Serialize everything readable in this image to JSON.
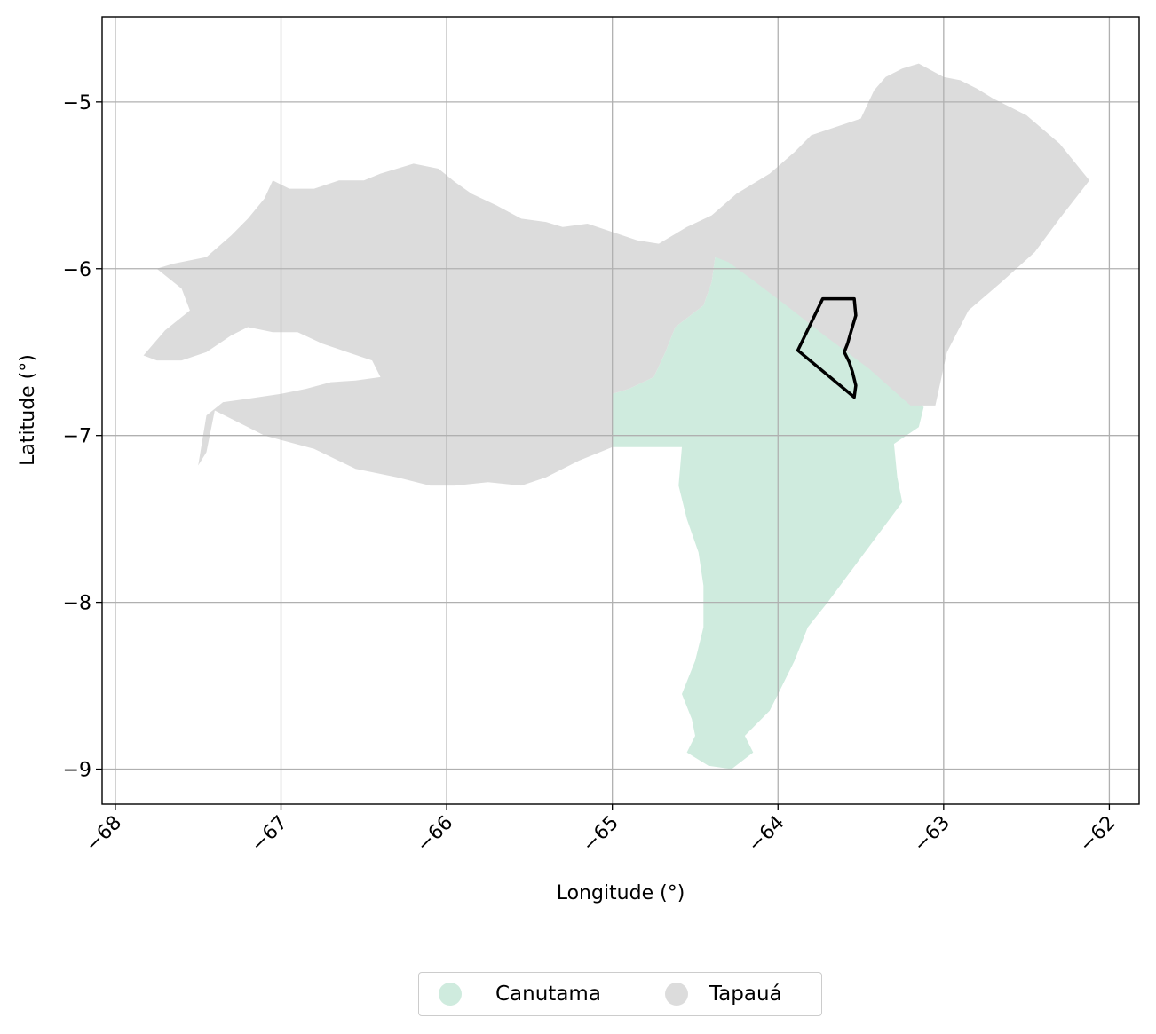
{
  "colors": {
    "canutama": "#cfebde",
    "tapaua": "#dcdcdc",
    "highlight_outline": "#000000",
    "grid": "#b0b0b0"
  },
  "chart_data": {
    "type": "map",
    "xlabel": "Longitude (°)",
    "ylabel": "Latitude (°)",
    "xlim": [
      -68.08,
      -61.82
    ],
    "ylim": [
      -9.21,
      -4.49
    ],
    "xticks": [
      -68,
      -67,
      -66,
      -65,
      -64,
      -63,
      -62
    ],
    "yticks": [
      -5,
      -6,
      -7,
      -8,
      -9
    ],
    "xtick_labels": [
      "−68",
      "−67",
      "−66",
      "−65",
      "−64",
      "−63",
      "−62"
    ],
    "ytick_labels": [
      "−5",
      "−6",
      "−7",
      "−8",
      "−9"
    ],
    "grid": true,
    "legend_position": "bottom-center",
    "regions": [
      {
        "name": "Canutama",
        "color": "#cfebde",
        "outline": [
          [
            -64.38,
            -5.93
          ],
          [
            -64.27,
            -5.95
          ],
          [
            -64.15,
            -6.05
          ],
          [
            -63.95,
            -6.2
          ],
          [
            -63.72,
            -6.38
          ],
          [
            -63.45,
            -6.55
          ],
          [
            -63.25,
            -6.72
          ],
          [
            -63.12,
            -6.83
          ],
          [
            -63.15,
            -6.95
          ],
          [
            -63.3,
            -7.05
          ],
          [
            -63.28,
            -7.25
          ],
          [
            -63.25,
            -7.4
          ],
          [
            -63.4,
            -7.6
          ],
          [
            -63.55,
            -7.8
          ],
          [
            -63.7,
            -8.0
          ],
          [
            -63.82,
            -8.15
          ],
          [
            -63.9,
            -8.35
          ],
          [
            -64.0,
            -8.55
          ],
          [
            -64.05,
            -8.65
          ],
          [
            -64.2,
            -8.8
          ],
          [
            -64.15,
            -8.9
          ],
          [
            -64.28,
            -9.0
          ],
          [
            -64.42,
            -8.98
          ],
          [
            -64.55,
            -8.9
          ],
          [
            -64.5,
            -8.8
          ],
          [
            -64.52,
            -8.7
          ],
          [
            -64.58,
            -8.55
          ],
          [
            -64.5,
            -8.35
          ],
          [
            -64.45,
            -8.15
          ],
          [
            -64.45,
            -7.9
          ],
          [
            -64.48,
            -7.7
          ],
          [
            -64.55,
            -7.5
          ],
          [
            -64.6,
            -7.3
          ],
          [
            -64.58,
            -7.07
          ],
          [
            -65.0,
            -7.07
          ],
          [
            -65.0,
            -6.75
          ],
          [
            -64.9,
            -6.72
          ],
          [
            -64.75,
            -6.65
          ],
          [
            -64.68,
            -6.5
          ],
          [
            -64.62,
            -6.35
          ],
          [
            -64.45,
            -6.22
          ],
          [
            -64.4,
            -6.08
          ]
        ]
      },
      {
        "name": "Tapauá",
        "color": "#dcdcdc",
        "outline": [
          [
            -67.83,
            -6.52
          ],
          [
            -67.7,
            -6.37
          ],
          [
            -67.55,
            -6.25
          ],
          [
            -67.6,
            -6.12
          ],
          [
            -67.75,
            -6.0
          ],
          [
            -67.65,
            -5.97
          ],
          [
            -67.45,
            -5.93
          ],
          [
            -67.3,
            -5.8
          ],
          [
            -67.2,
            -5.7
          ],
          [
            -67.1,
            -5.58
          ],
          [
            -67.05,
            -5.47
          ],
          [
            -66.95,
            -5.52
          ],
          [
            -66.8,
            -5.52
          ],
          [
            -66.65,
            -5.47
          ],
          [
            -66.5,
            -5.47
          ],
          [
            -66.4,
            -5.43
          ],
          [
            -66.3,
            -5.4
          ],
          [
            -66.2,
            -5.37
          ],
          [
            -66.05,
            -5.4
          ],
          [
            -65.95,
            -5.48
          ],
          [
            -65.85,
            -5.55
          ],
          [
            -65.7,
            -5.62
          ],
          [
            -65.55,
            -5.7
          ],
          [
            -65.4,
            -5.72
          ],
          [
            -65.3,
            -5.75
          ],
          [
            -65.15,
            -5.73
          ],
          [
            -65.0,
            -5.78
          ],
          [
            -64.85,
            -5.83
          ],
          [
            -64.72,
            -5.85
          ],
          [
            -64.55,
            -5.75
          ],
          [
            -64.4,
            -5.68
          ],
          [
            -64.25,
            -5.55
          ],
          [
            -64.05,
            -5.43
          ],
          [
            -63.9,
            -5.3
          ],
          [
            -63.8,
            -5.2
          ],
          [
            -63.65,
            -5.15
          ],
          [
            -63.5,
            -5.1
          ],
          [
            -63.42,
            -4.93
          ],
          [
            -63.35,
            -4.85
          ],
          [
            -63.25,
            -4.8
          ],
          [
            -63.15,
            -4.77
          ],
          [
            -63.0,
            -4.85
          ],
          [
            -62.9,
            -4.87
          ],
          [
            -62.8,
            -4.92
          ],
          [
            -62.7,
            -4.98
          ],
          [
            -62.5,
            -5.08
          ],
          [
            -62.3,
            -5.25
          ],
          [
            -62.12,
            -5.47
          ],
          [
            -62.3,
            -5.7
          ],
          [
            -62.45,
            -5.9
          ],
          [
            -62.65,
            -6.08
          ],
          [
            -62.85,
            -6.25
          ],
          [
            -62.98,
            -6.5
          ],
          [
            -63.05,
            -6.82
          ],
          [
            -63.2,
            -6.82
          ],
          [
            -63.45,
            -6.6
          ],
          [
            -63.72,
            -6.4
          ],
          [
            -63.95,
            -6.22
          ],
          [
            -64.15,
            -6.07
          ],
          [
            -64.3,
            -5.96
          ],
          [
            -64.38,
            -5.93
          ],
          [
            -64.4,
            -6.08
          ],
          [
            -64.45,
            -6.22
          ],
          [
            -64.62,
            -6.35
          ],
          [
            -64.68,
            -6.5
          ],
          [
            -64.75,
            -6.65
          ],
          [
            -64.9,
            -6.72
          ],
          [
            -65.0,
            -6.75
          ],
          [
            -65.0,
            -7.07
          ],
          [
            -65.2,
            -7.15
          ],
          [
            -65.4,
            -7.25
          ],
          [
            -65.55,
            -7.3
          ],
          [
            -65.75,
            -7.28
          ],
          [
            -65.95,
            -7.3
          ],
          [
            -66.1,
            -7.3
          ],
          [
            -66.3,
            -7.25
          ],
          [
            -66.55,
            -7.2
          ],
          [
            -66.8,
            -7.08
          ],
          [
            -67.1,
            -7.0
          ],
          [
            -67.2,
            -6.95
          ],
          [
            -67.3,
            -6.9
          ],
          [
            -67.4,
            -6.85
          ],
          [
            -67.45,
            -7.1
          ],
          [
            -67.5,
            -7.18
          ],
          [
            -67.45,
            -6.88
          ],
          [
            -67.35,
            -6.8
          ],
          [
            -67.2,
            -6.78
          ],
          [
            -67.0,
            -6.75
          ],
          [
            -66.85,
            -6.72
          ],
          [
            -66.7,
            -6.68
          ],
          [
            -66.55,
            -6.67
          ],
          [
            -66.4,
            -6.65
          ],
          [
            -66.45,
            -6.55
          ],
          [
            -66.6,
            -6.5
          ],
          [
            -66.75,
            -6.45
          ],
          [
            -66.9,
            -6.38
          ],
          [
            -67.05,
            -6.38
          ],
          [
            -67.2,
            -6.35
          ],
          [
            -67.3,
            -6.4
          ],
          [
            -67.45,
            -6.5
          ],
          [
            -67.6,
            -6.55
          ],
          [
            -67.75,
            -6.55
          ]
        ]
      }
    ],
    "highlight_outline": [
      [
        -63.73,
        -6.18
      ],
      [
        -63.54,
        -6.18
      ],
      [
        -63.53,
        -6.28
      ],
      [
        -63.56,
        -6.38
      ],
      [
        -63.58,
        -6.45
      ],
      [
        -63.6,
        -6.5
      ],
      [
        -63.57,
        -6.56
      ],
      [
        -63.55,
        -6.62
      ],
      [
        -63.53,
        -6.7
      ],
      [
        -63.54,
        -6.77
      ],
      [
        -63.88,
        -6.49
      ]
    ]
  },
  "legend": {
    "items": [
      {
        "label": "Canutama",
        "color": "#cfebde"
      },
      {
        "label": "Tapauá",
        "color": "#dcdcdc"
      }
    ]
  }
}
